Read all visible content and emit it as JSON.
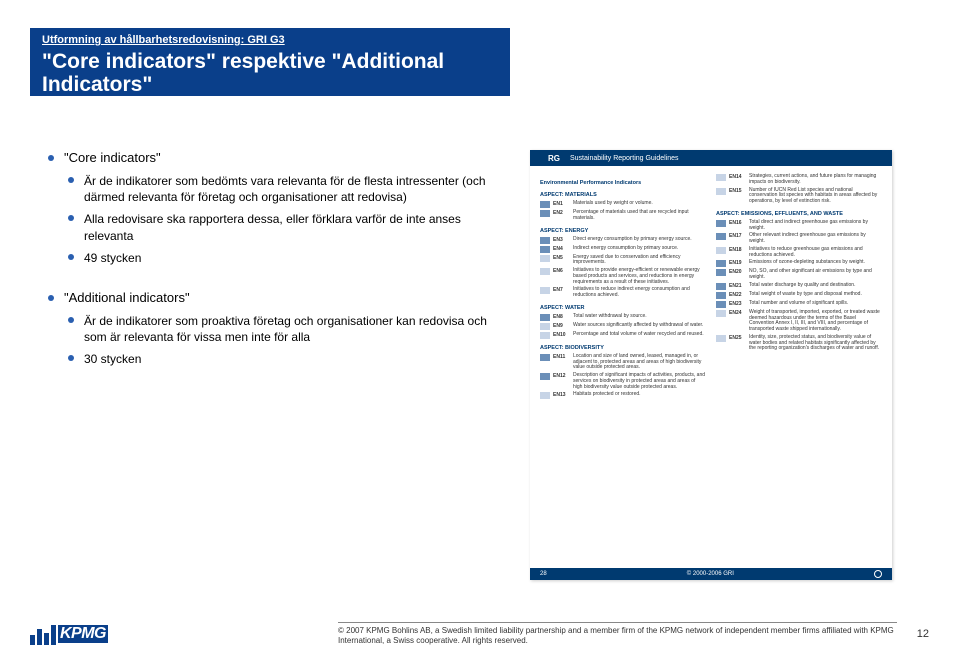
{
  "header": {
    "subtitle": "Utformning av hållbarhetsredovisning: GRI G3",
    "title": "\"Core indicators\" respektive \"Additional Indicators\""
  },
  "sections": [
    {
      "heading": "\"Core indicators\"",
      "items": [
        "Är de indikatorer som bedömts vara relevanta för de flesta intressenter (och därmed relevanta för företag och organisationer att redovisa)",
        "Alla redovisare ska rapportera dessa, eller förklara varför de inte anses relevanta",
        "49 stycken"
      ]
    },
    {
      "heading": "\"Additional indicators\"",
      "items": [
        "Är de indikatorer som proaktiva företag och organisationer kan redovisa och som är relevanta för vissa men inte för alla",
        "30 stycken"
      ]
    }
  ],
  "thumb": {
    "rg": "RG",
    "title": "Sustainability Reporting Guidelines",
    "page_label": "© 2000-2006 GRI",
    "page_num": "28",
    "col1_heading": "Environmental Performance Indicators",
    "col1": [
      {
        "aspect": "ASPECT: MATERIALS",
        "rows": [
          {
            "t": "core",
            "c": "EN1",
            "d": "Materials used by weight or volume."
          },
          {
            "t": "core",
            "c": "EN2",
            "d": "Percentage of materials used that are recycled input materials."
          }
        ]
      },
      {
        "aspect": "ASPECT: ENERGY",
        "rows": [
          {
            "t": "core",
            "c": "EN3",
            "d": "Direct energy consumption by primary energy source."
          },
          {
            "t": "core",
            "c": "EN4",
            "d": "Indirect energy consumption by primary source."
          },
          {
            "t": "add",
            "c": "EN5",
            "d": "Energy saved due to conservation and efficiency improvements."
          },
          {
            "t": "add",
            "c": "EN6",
            "d": "Initiatives to provide energy-efficient or renewable energy based products and services, and reductions in energy requirements as a result of these initiatives."
          },
          {
            "t": "add",
            "c": "EN7",
            "d": "Initiatives to reduce indirect energy consumption and reductions achieved."
          }
        ]
      },
      {
        "aspect": "ASPECT: WATER",
        "rows": [
          {
            "t": "core",
            "c": "EN8",
            "d": "Total water withdrawal by source."
          },
          {
            "t": "add",
            "c": "EN9",
            "d": "Water sources significantly affected by withdrawal of water."
          },
          {
            "t": "add",
            "c": "EN10",
            "d": "Percentage and total volume of water recycled and reused."
          }
        ]
      },
      {
        "aspect": "ASPECT: BIODIVERSITY",
        "rows": [
          {
            "t": "core",
            "c": "EN11",
            "d": "Location and size of land owned, leased, managed in, or adjacent to, protected areas and areas of high biodiversity value outside protected areas."
          },
          {
            "t": "core",
            "c": "EN12",
            "d": "Description of significant impacts of activities, products, and services on biodiversity in protected areas and areas of high biodiversity value outside protected areas."
          },
          {
            "t": "add",
            "c": "EN13",
            "d": "Habitats protected or restored."
          }
        ]
      }
    ],
    "col2": [
      {
        "aspect": "",
        "rows": [
          {
            "t": "add",
            "c": "EN14",
            "d": "Strategies, current actions, and future plans for managing impacts on biodiversity."
          },
          {
            "t": "add",
            "c": "EN15",
            "d": "Number of IUCN Red List species and national conservation list species with habitats in areas affected by operations, by level of extinction risk."
          }
        ]
      },
      {
        "aspect": "ASPECT: EMISSIONS, EFFLUENTS, AND WASTE",
        "rows": [
          {
            "t": "core",
            "c": "EN16",
            "d": "Total direct and indirect greenhouse gas emissions by weight."
          },
          {
            "t": "core",
            "c": "EN17",
            "d": "Other relevant indirect greenhouse gas emissions by weight."
          },
          {
            "t": "add",
            "c": "EN18",
            "d": "Initiatives to reduce greenhouse gas emissions and reductions achieved."
          },
          {
            "t": "core",
            "c": "EN19",
            "d": "Emissions of ozone-depleting substances by weight."
          },
          {
            "t": "core",
            "c": "EN20",
            "d": "NO, SO, and other significant air emissions by type and weight."
          },
          {
            "t": "core",
            "c": "EN21",
            "d": "Total water discharge by quality and destination."
          },
          {
            "t": "core",
            "c": "EN22",
            "d": "Total weight of waste by type and disposal method."
          },
          {
            "t": "core",
            "c": "EN23",
            "d": "Total number and volume of significant spills."
          },
          {
            "t": "add",
            "c": "EN24",
            "d": "Weight of transported, imported, exported, or treated waste deemed hazardous under the terms of the Basel Convention Annex I, II, III, and VIII, and percentage of transported waste shipped internationally."
          },
          {
            "t": "add",
            "c": "EN25",
            "d": "Identity, size, protected status, and biodiversity value of water bodies and related habitats significantly affected by the reporting organization's discharges of water and runoff."
          }
        ]
      }
    ]
  },
  "footer": {
    "logo_text": "KPMG",
    "copyright": "© 2007 KPMG Bohlins AB, a Swedish limited liability partnership and a member firm of the KPMG network of independent member firms affiliated with KPMG International, a Swiss cooperative. All rights reserved.",
    "page": "12"
  },
  "colors": {
    "brand_blue": "#0a3f8a",
    "bullet_blue": "#2a5fb0",
    "thumb_header": "#003a70"
  }
}
